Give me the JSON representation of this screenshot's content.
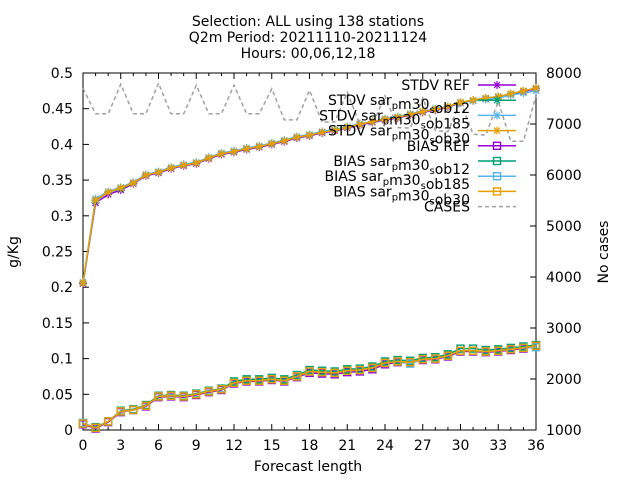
{
  "chart_data": {
    "type": "line",
    "title_lines": [
      "Selection: ALL using    138 stations",
      "Q2m   Period: 20211110-20211124",
      "Hours: 00,06,12,18"
    ],
    "xlabel": "Forecast length",
    "ylabel": "g/Kg",
    "y2label": "No cases",
    "xlim": [
      0,
      36
    ],
    "ylim": [
      0,
      0.5
    ],
    "y2lim": [
      1000,
      8000
    ],
    "xticks": [
      "0",
      "3",
      "6",
      "9",
      "12",
      "15",
      "18",
      "21",
      "24",
      "27",
      "30",
      "33",
      "36"
    ],
    "yticks": [
      "0",
      "0.05",
      "0.1",
      "0.15",
      "0.2",
      "0.25",
      "0.3",
      "0.35",
      "0.4",
      "0.45",
      "0.5"
    ],
    "y2ticks": [
      "1000",
      "2000",
      "3000",
      "4000",
      "5000",
      "6000",
      "7000",
      "8000"
    ],
    "legend_position": "top-right",
    "x": [
      0,
      1,
      2,
      3,
      4,
      5,
      6,
      7,
      8,
      9,
      10,
      11,
      12,
      13,
      14,
      15,
      16,
      17,
      18,
      19,
      20,
      21,
      22,
      23,
      24,
      25,
      26,
      27,
      28,
      29,
      30,
      31,
      32,
      33,
      34,
      35,
      36
    ],
    "series": [
      {
        "name": "STDV REF",
        "axis": "y1",
        "color": "#9400d3",
        "marker": "star",
        "values": [
          0.205,
          0.318,
          0.33,
          0.336,
          0.345,
          0.356,
          0.36,
          0.366,
          0.37,
          0.373,
          0.38,
          0.386,
          0.389,
          0.393,
          0.396,
          0.4,
          0.404,
          0.409,
          0.412,
          0.416,
          0.419,
          0.423,
          0.427,
          0.431,
          0.434,
          0.437,
          0.441,
          0.445,
          0.448,
          0.452,
          0.458,
          0.461,
          0.464,
          0.466,
          0.47,
          0.474,
          0.478
        ]
      },
      {
        "name": "STDV sar_pm30_sob12",
        "axis": "y1",
        "color": "#009e73",
        "marker": "star",
        "values": [
          0.206,
          0.321,
          0.333,
          0.338,
          0.346,
          0.357,
          0.361,
          0.367,
          0.371,
          0.374,
          0.381,
          0.387,
          0.39,
          0.394,
          0.397,
          0.401,
          0.405,
          0.41,
          0.413,
          0.417,
          0.42,
          0.424,
          0.428,
          0.432,
          0.435,
          0.438,
          0.442,
          0.446,
          0.449,
          0.453,
          0.459,
          0.462,
          0.465,
          0.467,
          0.471,
          0.475,
          0.479
        ]
      },
      {
        "name": "STDV sar_pm30_sob185",
        "axis": "y1",
        "color": "#56b4e9",
        "marker": "star",
        "values": [
          0.207,
          0.324,
          0.334,
          0.34,
          0.347,
          0.358,
          0.362,
          0.368,
          0.372,
          0.375,
          0.382,
          0.388,
          0.391,
          0.395,
          0.398,
          0.402,
          0.406,
          0.411,
          0.414,
          0.418,
          0.421,
          0.425,
          0.429,
          0.432,
          0.436,
          0.439,
          0.443,
          0.446,
          0.45,
          0.453,
          0.458,
          0.461,
          0.463,
          0.465,
          0.469,
          0.472,
          0.475
        ]
      },
      {
        "name": "STDV sar_pm30_sob30",
        "axis": "y1",
        "color": "#e69f00",
        "marker": "star",
        "values": [
          0.206,
          0.322,
          0.333,
          0.339,
          0.346,
          0.357,
          0.361,
          0.367,
          0.371,
          0.374,
          0.381,
          0.387,
          0.39,
          0.394,
          0.397,
          0.401,
          0.405,
          0.41,
          0.413,
          0.417,
          0.42,
          0.424,
          0.428,
          0.432,
          0.435,
          0.438,
          0.442,
          0.446,
          0.449,
          0.453,
          0.459,
          0.462,
          0.465,
          0.467,
          0.471,
          0.475,
          0.479
        ]
      },
      {
        "name": "BIAS REF",
        "axis": "y1",
        "color": "#9400d3",
        "marker": "square",
        "values": [
          0.008,
          0.002,
          0.011,
          0.025,
          0.028,
          0.033,
          0.046,
          0.047,
          0.046,
          0.049,
          0.053,
          0.056,
          0.065,
          0.068,
          0.068,
          0.07,
          0.068,
          0.074,
          0.08,
          0.079,
          0.078,
          0.081,
          0.082,
          0.085,
          0.092,
          0.095,
          0.094,
          0.098,
          0.099,
          0.103,
          0.11,
          0.11,
          0.109,
          0.11,
          0.112,
          0.114,
          0.117
        ]
      },
      {
        "name": "BIAS sar_pm30_sob12",
        "axis": "y1",
        "color": "#009e73",
        "marker": "square",
        "values": [
          0.009,
          0.004,
          0.012,
          0.027,
          0.029,
          0.035,
          0.048,
          0.049,
          0.048,
          0.051,
          0.055,
          0.058,
          0.068,
          0.071,
          0.071,
          0.073,
          0.071,
          0.077,
          0.084,
          0.083,
          0.082,
          0.085,
          0.086,
          0.089,
          0.096,
          0.098,
          0.097,
          0.101,
          0.102,
          0.106,
          0.114,
          0.114,
          0.112,
          0.113,
          0.115,
          0.117,
          0.119
        ]
      },
      {
        "name": "BIAS sar_pm30_sob185",
        "axis": "y1",
        "color": "#56b4e9",
        "marker": "square",
        "values": [
          0.01,
          0.003,
          0.012,
          0.026,
          0.028,
          0.034,
          0.047,
          0.048,
          0.047,
          0.05,
          0.054,
          0.057,
          0.066,
          0.069,
          0.069,
          0.071,
          0.069,
          0.075,
          0.082,
          0.081,
          0.08,
          0.083,
          0.084,
          0.087,
          0.094,
          0.096,
          0.093,
          0.099,
          0.1,
          0.104,
          0.111,
          0.111,
          0.11,
          0.111,
          0.113,
          0.115,
          0.116
        ]
      },
      {
        "name": "BIAS sar_pm30_sob30",
        "axis": "y1",
        "color": "#e69f00",
        "marker": "square",
        "values": [
          0.009,
          0.003,
          0.012,
          0.026,
          0.028,
          0.034,
          0.047,
          0.048,
          0.047,
          0.05,
          0.054,
          0.057,
          0.066,
          0.069,
          0.069,
          0.071,
          0.069,
          0.075,
          0.082,
          0.081,
          0.08,
          0.083,
          0.084,
          0.087,
          0.094,
          0.096,
          0.095,
          0.099,
          0.1,
          0.104,
          0.111,
          0.111,
          0.11,
          0.111,
          0.113,
          0.115,
          0.118
        ]
      },
      {
        "name": "CASES",
        "axis": "y2",
        "color": "#a0a0a0",
        "marker": "none",
        "dashed": true,
        "values": [
          7700,
          7200,
          7200,
          7780,
          7200,
          7200,
          7800,
          7200,
          7200,
          7760,
          7200,
          7200,
          7760,
          7200,
          7200,
          7690,
          7080,
          7080,
          7660,
          7040,
          7040,
          7620,
          7000,
          6990,
          7550,
          6930,
          6920,
          7510,
          6870,
          6850,
          7440,
          6800,
          6780,
          7440,
          6660,
          6660,
          7560
        ]
      }
    ],
    "legend": [
      {
        "main": "STDV REF",
        "sub": "",
        "tail": ""
      },
      {
        "main": "STDV sar",
        "sub": "p",
        "tail": "m30",
        "sub2": "s",
        "tail2": "ob12"
      },
      {
        "main": "STDV sar",
        "sub": "p",
        "tail": "m30",
        "sub2": "s",
        "tail2": "ob185"
      },
      {
        "main": "STDV sar",
        "sub": "p",
        "tail": "m30",
        "sub2": "s",
        "tail2": "ob30"
      },
      {
        "main": "BIAS REF",
        "sub": "",
        "tail": ""
      },
      {
        "main": "BIAS sar",
        "sub": "p",
        "tail": "m30",
        "sub2": "s",
        "tail2": "ob12"
      },
      {
        "main": "BIAS sar",
        "sub": "p",
        "tail": "m30",
        "sub2": "s",
        "tail2": "ob185"
      },
      {
        "main": "BIAS sar",
        "sub": "p",
        "tail": "m30",
        "sub2": "s",
        "tail2": "ob30"
      },
      {
        "main": "CASES",
        "sub": "",
        "tail": ""
      }
    ]
  }
}
